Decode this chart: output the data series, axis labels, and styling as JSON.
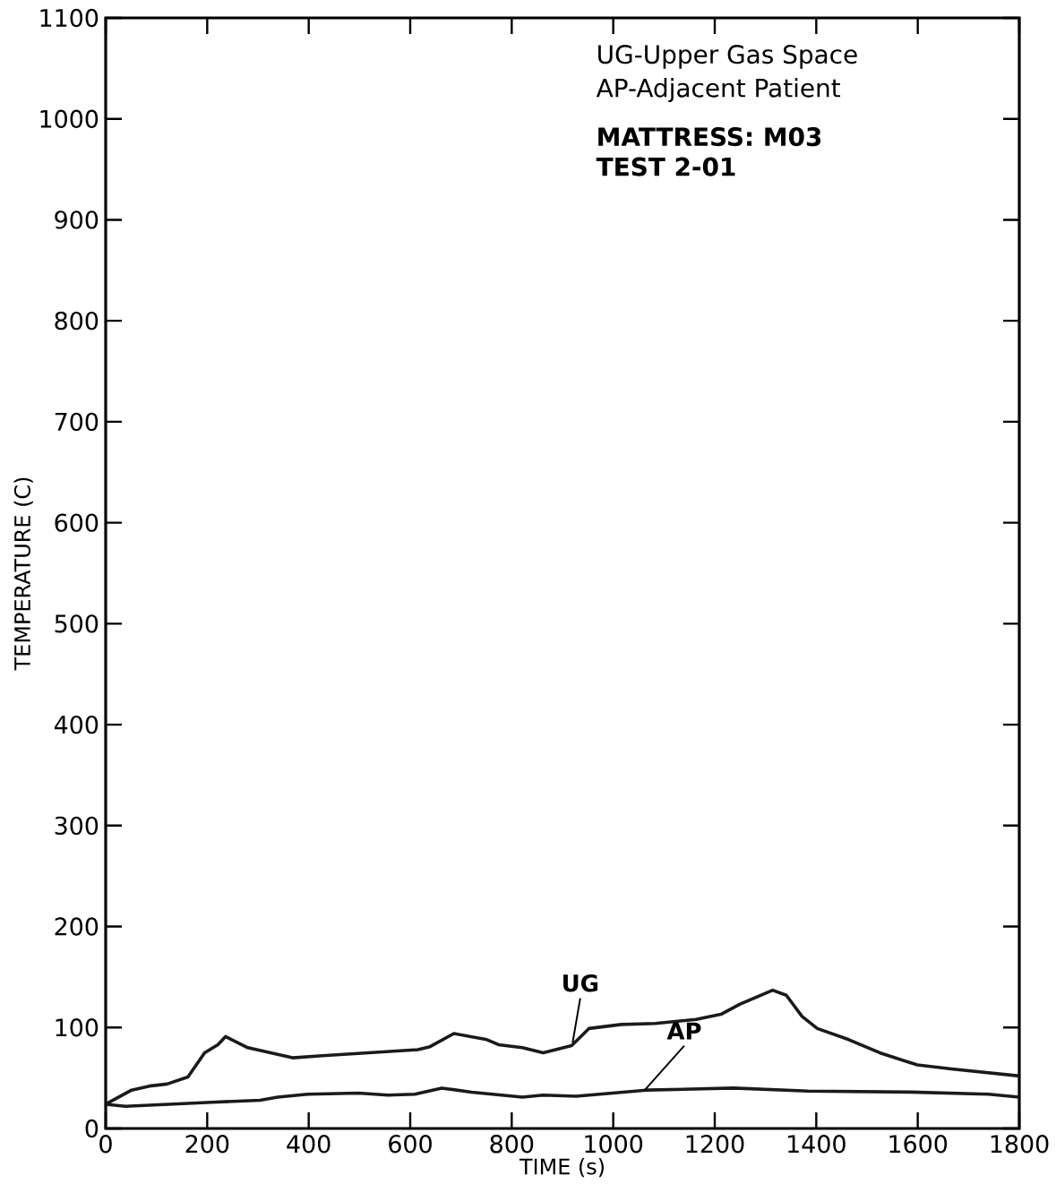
{
  "chart_data": {
    "type": "line",
    "xlabel": "TIME (s)",
    "ylabel": "TEMPERATURE (C)",
    "xlim": [
      0,
      1800
    ],
    "ylim": [
      0,
      1100
    ],
    "xticks": [
      0,
      200,
      400,
      600,
      800,
      1000,
      1200,
      1400,
      1600,
      1800
    ],
    "yticks": [
      0,
      100,
      200,
      300,
      400,
      500,
      600,
      700,
      800,
      900,
      1000,
      1100
    ],
    "grid": false,
    "marker": "none",
    "line_style": "solid",
    "series": [
      {
        "color": "#1a1a1a",
        "x": [
          0,
          51,
          86,
          121,
          162,
          195,
          221,
          236,
          280,
          368,
          427,
          615,
          639,
          686,
          751,
          774,
          821,
          862,
          918,
          952,
          1016,
          1083,
          1163,
          1212,
          1249,
          1314,
          1341,
          1372,
          1402,
          1464,
          1525,
          1599,
          1666,
          1800
        ],
        "values": [
          24,
          38,
          42,
          44,
          51,
          75,
          83,
          91,
          80,
          70,
          72,
          78,
          81,
          94,
          88,
          83,
          80,
          75,
          82,
          99,
          103,
          104,
          108,
          113,
          123,
          137,
          132,
          111,
          99,
          88,
          75,
          63,
          59,
          52
        ]
      },
      {
        "color": "#1a1a1a",
        "x": [
          0,
          39,
          209,
          304,
          339,
          398,
          498,
          556,
          609,
          662,
          721,
          821,
          862,
          927,
          1065,
          1237,
          1384,
          1587,
          1740,
          1800
        ],
        "values": [
          24,
          22,
          26,
          28,
          31,
          34,
          35,
          33,
          34,
          40,
          36,
          31,
          33,
          32,
          38,
          40,
          37,
          36,
          34,
          31
        ]
      }
    ],
    "annotations": [
      {
        "text": "UG",
        "x": 920,
        "y": 85
      },
      {
        "text": "AP",
        "x": 1062,
        "y": 38
      },
      "UG-Upper Gas Space",
      "AP-Adjacent Patient",
      "MATTRESS: M03",
      "TEST 2-01"
    ]
  }
}
